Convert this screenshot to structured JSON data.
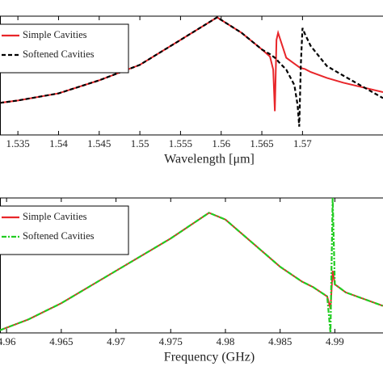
{
  "chart_data": [
    {
      "type": "line",
      "xlabel": "Wavelength [μm]",
      "x": [
        1.5328,
        1.535,
        1.54,
        1.545,
        1.55,
        1.555,
        1.5595,
        1.5625,
        1.565,
        1.566,
        1.5664,
        1.5666,
        1.5668,
        1.567,
        1.568,
        1.569,
        1.5694,
        1.5696,
        1.5698,
        1.57,
        1.5703,
        1.571,
        1.573,
        1.575,
        1.5799
      ],
      "series": [
        {
          "name": "Simple Cavities",
          "color": "#e8262a",
          "style": "solid",
          "values": [
            0.27,
            0.29,
            0.35,
            0.46,
            0.59,
            0.8,
            0.99,
            0.86,
            0.72,
            0.66,
            0.55,
            0.2,
            0.8,
            0.86,
            0.65,
            0.6,
            0.58,
            0.57,
            0.565,
            0.56,
            0.555,
            0.53,
            0.48,
            0.44,
            0.36
          ]
        },
        {
          "name": "Softened Cavities",
          "color": "#000000",
          "style": "dashed",
          "values": [
            0.27,
            0.29,
            0.35,
            0.46,
            0.59,
            0.8,
            0.99,
            0.86,
            0.72,
            0.68,
            0.66,
            0.65,
            0.64,
            0.62,
            0.55,
            0.42,
            0.25,
            0.07,
            0.6,
            0.9,
            0.85,
            0.75,
            0.58,
            0.5,
            0.31
          ]
        }
      ],
      "xlim": [
        1.5328,
        1.5799
      ],
      "xticks": [
        1.535,
        1.54,
        1.545,
        1.55,
        1.555,
        1.56,
        1.565,
        1.57
      ],
      "ylim": [
        0,
        1
      ],
      "legend": "upper left"
    },
    {
      "type": "line",
      "xlabel": "Frequency (GHz)",
      "x": [
        4.9594,
        4.962,
        4.965,
        4.97,
        4.975,
        4.9785,
        4.98,
        4.983,
        4.985,
        4.987,
        4.988,
        4.9893,
        4.9896,
        4.9898,
        4.99,
        4.991,
        4.9944
      ],
      "series": [
        {
          "name": "Simple Cavities",
          "color": "#e8262a",
          "style": "solid",
          "values": [
            0.02,
            0.1,
            0.22,
            0.46,
            0.7,
            0.89,
            0.84,
            0.63,
            0.49,
            0.38,
            0.34,
            0.27,
            0.18,
            0.46,
            0.36,
            0.3,
            0.2
          ]
        },
        {
          "name": "Softened Cavities",
          "color": "#22cc22",
          "style": "dashdot",
          "values": [
            0.02,
            0.1,
            0.22,
            0.46,
            0.7,
            0.89,
            0.84,
            0.63,
            0.49,
            0.38,
            0.34,
            0.27,
            0,
            1,
            0.36,
            0.3,
            0.2
          ]
        }
      ],
      "xlim": [
        4.9594,
        4.9944
      ],
      "xticks": [
        4.96,
        4.965,
        4.97,
        4.975,
        4.98,
        4.985,
        4.99
      ],
      "ylim": [
        0,
        1
      ],
      "legend": "upper left"
    }
  ]
}
